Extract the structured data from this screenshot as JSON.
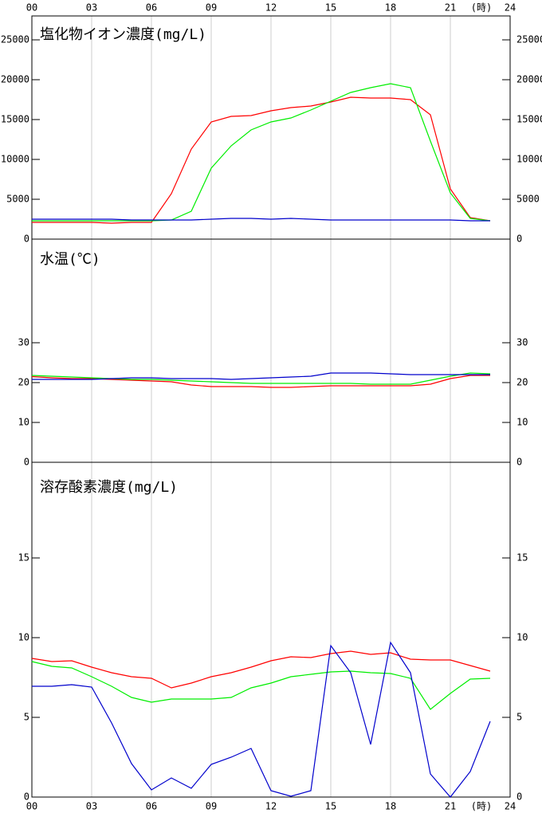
{
  "chart_data": [
    {
      "type": "line",
      "title": "塩化物イオン濃度(mg/L)",
      "x": [
        0,
        1,
        2,
        3,
        4,
        5,
        6,
        7,
        8,
        9,
        10,
        11,
        12,
        13,
        14,
        15,
        16,
        17,
        18,
        19,
        20,
        21,
        22,
        23
      ],
      "series": [
        {
          "color": "#ff0000",
          "values": [
            2100,
            2100,
            2100,
            2100,
            2000,
            2100,
            2100,
            5700,
            11300,
            14700,
            15400,
            15500,
            16100,
            16500,
            16700,
            17200,
            17800,
            17700,
            17700,
            17500,
            15600,
            6300,
            2700,
            2300
          ]
        },
        {
          "color": "#00ee00",
          "values": [
            2300,
            2300,
            2300,
            2300,
            2300,
            2300,
            2300,
            2400,
            3500,
            8900,
            11700,
            13700,
            14700,
            15200,
            16200,
            17300,
            18400,
            19000,
            19500,
            19000,
            12300,
            5800,
            2600,
            2300
          ]
        },
        {
          "color": "#0000cc",
          "values": [
            2500,
            2500,
            2500,
            2500,
            2500,
            2400,
            2400,
            2400,
            2400,
            2500,
            2600,
            2600,
            2500,
            2600,
            2500,
            2400,
            2400,
            2400,
            2400,
            2400,
            2400,
            2400,
            2300,
            2300
          ]
        }
      ],
      "xlim": [
        0,
        24
      ],
      "xticks": [
        {
          "value": 0,
          "label": "00"
        },
        {
          "value": 3,
          "label": "03"
        },
        {
          "value": 6,
          "label": "06"
        },
        {
          "value": 9,
          "label": "09"
        },
        12,
        15,
        18,
        21,
        24
      ],
      "xlabel": "(時)",
      "xaxis_position": "top",
      "ylim": [
        0,
        28000
      ],
      "yticks": [
        0,
        5000,
        10000,
        15000,
        20000,
        25000
      ],
      "grid": true
    },
    {
      "type": "line",
      "title": "水温(℃)",
      "x": [
        0,
        1,
        2,
        3,
        4,
        5,
        6,
        7,
        8,
        9,
        10,
        11,
        12,
        13,
        14,
        15,
        16,
        17,
        18,
        19,
        20,
        21,
        22,
        23
      ],
      "series": [
        {
          "color": "#ff0000",
          "values": [
            21.5,
            21.2,
            21,
            21,
            20.8,
            20.6,
            20.4,
            20.2,
            19.4,
            19,
            19,
            19,
            18.8,
            18.8,
            19,
            19.2,
            19.2,
            19.2,
            19.2,
            19.2,
            19.6,
            21,
            21.8,
            21.8
          ]
        },
        {
          "color": "#00ee00",
          "values": [
            21.8,
            21.6,
            21.4,
            21.2,
            21,
            20.8,
            20.8,
            20.6,
            20.4,
            20.2,
            20,
            19.8,
            19.8,
            19.8,
            19.8,
            19.8,
            19.8,
            19.6,
            19.6,
            19.6,
            20.6,
            21.6,
            22.4,
            22.2
          ]
        },
        {
          "color": "#0000cc",
          "values": [
            20.8,
            20.8,
            20.8,
            20.8,
            21,
            21.2,
            21.2,
            21,
            21,
            21,
            20.8,
            21,
            21.2,
            21.4,
            21.6,
            22.4,
            22.4,
            22.4,
            22.2,
            22,
            22,
            22,
            22,
            22
          ]
        }
      ],
      "xlim": [
        0,
        24
      ],
      "xticks": [
        0,
        3,
        6,
        9,
        12,
        15,
        18,
        21,
        24
      ],
      "ylim": [
        0,
        56
      ],
      "yticks": [
        0,
        10,
        20,
        30
      ],
      "grid": true
    },
    {
      "type": "line",
      "title": "溶存酸素濃度(mg/L)",
      "x": [
        0,
        1,
        2,
        3,
        4,
        5,
        6,
        7,
        8,
        9,
        10,
        11,
        12,
        13,
        14,
        15,
        16,
        17,
        18,
        19,
        20,
        21,
        22,
        23
      ],
      "series": [
        {
          "color": "#ff0000",
          "values": [
            8.7,
            8.5,
            8.55,
            8.15,
            7.8,
            7.55,
            7.45,
            6.85,
            7.15,
            7.55,
            7.8,
            8.15,
            8.55,
            8.8,
            8.75,
            9.0,
            9.15,
            8.95,
            9.05,
            8.65,
            8.6,
            8.6,
            8.25,
            7.9
          ]
        },
        {
          "color": "#00ee00",
          "values": [
            8.5,
            8.2,
            8.1,
            7.55,
            6.95,
            6.25,
            5.95,
            6.15,
            6.15,
            6.15,
            6.25,
            6.85,
            7.15,
            7.55,
            7.7,
            7.85,
            7.9,
            7.8,
            7.75,
            7.45,
            5.5,
            6.5,
            7.4,
            7.45
          ]
        },
        {
          "color": "#0000cc",
          "values": [
            6.95,
            6.95,
            7.05,
            6.9,
            4.65,
            2.1,
            0.45,
            1.2,
            0.55,
            2.05,
            2.5,
            3.05,
            0.4,
            0.05,
            0.4,
            9.5,
            7.8,
            3.3,
            9.7,
            7.8,
            1.45,
            0,
            1.6,
            4.75
          ]
        }
      ],
      "xlim": [
        0,
        24
      ],
      "xticks": [
        {
          "value": 0,
          "label": "00"
        },
        {
          "value": 3,
          "label": "03"
        },
        {
          "value": 6,
          "label": "06"
        },
        {
          "value": 9,
          "label": "09"
        },
        12,
        15,
        18,
        21,
        24
      ],
      "xlabel": "(時)",
      "xaxis_position": "bottom",
      "ylim": [
        0,
        21
      ],
      "yticks": [
        0,
        5,
        10,
        15
      ],
      "grid": true
    }
  ]
}
